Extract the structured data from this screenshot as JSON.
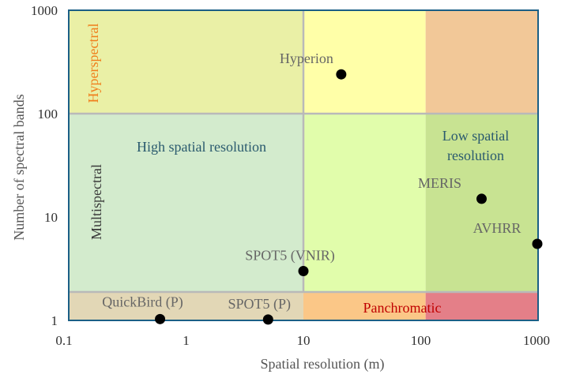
{
  "chart_data": {
    "type": "scatter",
    "title": "",
    "xlabel": "Spatial resolution (m)",
    "ylabel": "Number of spectral bands",
    "xscale": "log",
    "yscale": "log",
    "xlim": [
      0.1,
      1000
    ],
    "ylim": [
      1,
      1000
    ],
    "x_ticks": [
      "0.1",
      "1",
      "10",
      "100",
      "1000"
    ],
    "y_ticks": [
      "1",
      "10",
      "100",
      "1000"
    ],
    "grid": false,
    "legend": "none",
    "points": [
      {
        "label": "Hyperion",
        "x": 21,
        "y": 240
      },
      {
        "label": "MERIS",
        "x": 330,
        "y": 15
      },
      {
        "label": "AVHRR",
        "x": 1000,
        "y": 5.5
      },
      {
        "label": "SPOT5 (VNIR)",
        "x": 10,
        "y": 3
      },
      {
        "label": "QuickBird (P)",
        "x": 0.6,
        "y": 1.03
      },
      {
        "label": "SPOT5 (P)",
        "x": 5,
        "y": 1.02
      }
    ],
    "regions": [
      {
        "name": "Hyperspectral",
        "color": "#f07e1c"
      },
      {
        "name": "Multispectral",
        "color": "#3a3a3a"
      },
      {
        "name": "High spatial resolution",
        "color": "#2a5a6e"
      },
      {
        "name": "Low spatial resolution",
        "color": "#2a5a6e"
      },
      {
        "name": "Panchromatic",
        "color": "#c00000"
      }
    ],
    "colors": {
      "frame": "#1b5f86",
      "point": "#000000",
      "hyper_left": "#eaf0a6",
      "hyper_mid": "#ffffa8",
      "hyper_right": "#f2c898",
      "multi_left": "#d3ebcd",
      "multi_mid": "#e1fdab",
      "multi_right": "#c8e392",
      "pan_left": "#e2d7b6",
      "pan_mid": "#fbc787",
      "pan_right": "#e47f88"
    }
  }
}
